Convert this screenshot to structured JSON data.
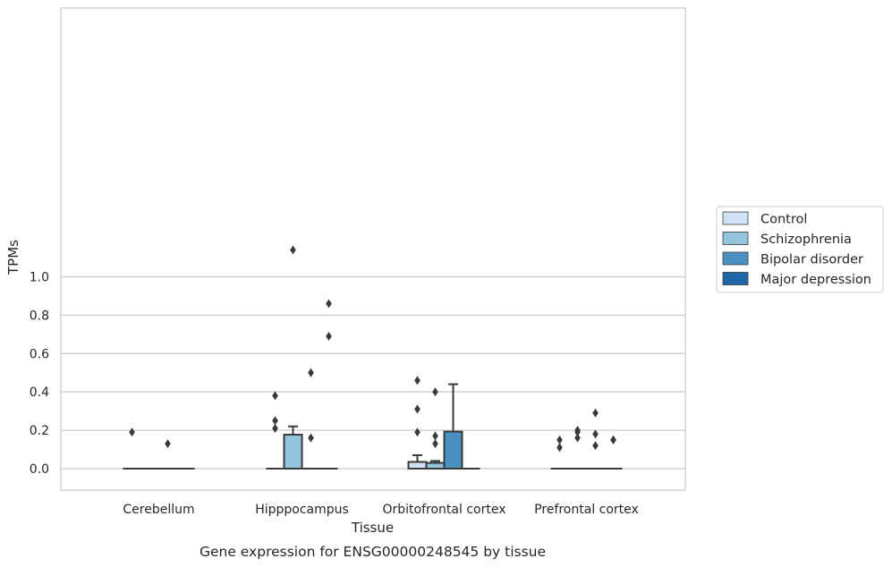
{
  "chart_data": {
    "type": "box",
    "title": "",
    "caption": "Gene expression for ENSG00000248545 by tissue",
    "xlabel": "Tissue",
    "ylabel": "TPMs",
    "ylim": [
      -0.055,
      1.2
    ],
    "yticks": [
      0.0,
      0.2,
      0.4,
      0.6,
      0.8,
      1.0
    ],
    "ytick_labels": [
      "0.0",
      "0.2",
      "0.4",
      "0.6",
      "0.8",
      "1.0"
    ],
    "categories": [
      "Cerebellum",
      "Hipppocampus",
      "Orbitofrontal cortex",
      "Prefrontal cortex"
    ],
    "grid": "horizontal",
    "legend_position": "right",
    "series": [
      {
        "name": "Control",
        "color": "#cfe1f2"
      },
      {
        "name": "Schizophrenia",
        "color": "#93c4de"
      },
      {
        "name": "Bipolar disorder",
        "color": "#4a90c1"
      },
      {
        "name": "Major depression",
        "color": "#2166a8"
      }
    ],
    "boxes": [
      {
        "category": 0,
        "series": 0,
        "q1": 0,
        "median": 0,
        "q3": 0,
        "whisker_low": 0,
        "whisker_high": 0,
        "outliers": [
          0.19
        ]
      },
      {
        "category": 0,
        "series": 1,
        "q1": 0,
        "median": 0,
        "q3": 0,
        "whisker_low": 0,
        "whisker_high": 0,
        "outliers": []
      },
      {
        "category": 0,
        "series": 2,
        "q1": 0,
        "median": 0,
        "q3": 0,
        "whisker_low": 0,
        "whisker_high": 0,
        "outliers": [
          0.13
        ]
      },
      {
        "category": 0,
        "series": 3,
        "q1": 0,
        "median": 0,
        "q3": 0,
        "whisker_low": 0,
        "whisker_high": 0,
        "outliers": []
      },
      {
        "category": 1,
        "series": 0,
        "q1": 0,
        "median": 0,
        "q3": 0,
        "whisker_low": 0,
        "whisker_high": 0,
        "outliers": [
          0.38,
          0.25,
          0.21
        ]
      },
      {
        "category": 1,
        "series": 1,
        "q1": 0,
        "median": 0,
        "q3": 0.177,
        "whisker_low": 0,
        "whisker_high": 0.22,
        "outliers": [
          1.14
        ]
      },
      {
        "category": 1,
        "series": 2,
        "q1": 0,
        "median": 0,
        "q3": 0,
        "whisker_low": 0,
        "whisker_high": 0,
        "outliers": [
          0.5,
          0.16
        ]
      },
      {
        "category": 1,
        "series": 3,
        "q1": 0,
        "median": 0,
        "q3": 0,
        "whisker_low": 0,
        "whisker_high": 0,
        "outliers": [
          0.86,
          0.69
        ]
      },
      {
        "category": 2,
        "series": 0,
        "q1": 0,
        "median": 0,
        "q3": 0.035,
        "whisker_low": 0,
        "whisker_high": 0.07,
        "outliers": [
          0.46,
          0.31,
          0.19
        ]
      },
      {
        "category": 2,
        "series": 1,
        "q1": 0,
        "median": 0,
        "q3": 0.03,
        "whisker_low": 0,
        "whisker_high": 0.04,
        "outliers": [
          0.4,
          0.17,
          0.13
        ]
      },
      {
        "category": 2,
        "series": 2,
        "q1": 0,
        "median": 0,
        "q3": 0.193,
        "whisker_low": 0,
        "whisker_high": 0.44,
        "outliers": []
      },
      {
        "category": 2,
        "series": 3,
        "q1": 0,
        "median": 0,
        "q3": 0,
        "whisker_low": 0,
        "whisker_high": 0,
        "outliers": []
      },
      {
        "category": 3,
        "series": 0,
        "q1": 0,
        "median": 0,
        "q3": 0,
        "whisker_low": 0,
        "whisker_high": 0,
        "outliers": [
          0.15,
          0.11
        ]
      },
      {
        "category": 3,
        "series": 1,
        "q1": 0,
        "median": 0,
        "q3": 0,
        "whisker_low": 0,
        "whisker_high": 0,
        "outliers": [
          0.2,
          0.19,
          0.16
        ]
      },
      {
        "category": 3,
        "series": 2,
        "q1": 0,
        "median": 0,
        "q3": 0,
        "whisker_low": 0,
        "whisker_high": 0,
        "outliers": [
          0.29,
          0.18,
          0.12
        ]
      },
      {
        "category": 3,
        "series": 3,
        "q1": 0,
        "median": 0,
        "q3": 0,
        "whisker_low": 0,
        "whisker_high": 0,
        "outliers": [
          0.15,
          0.15
        ]
      }
    ]
  }
}
